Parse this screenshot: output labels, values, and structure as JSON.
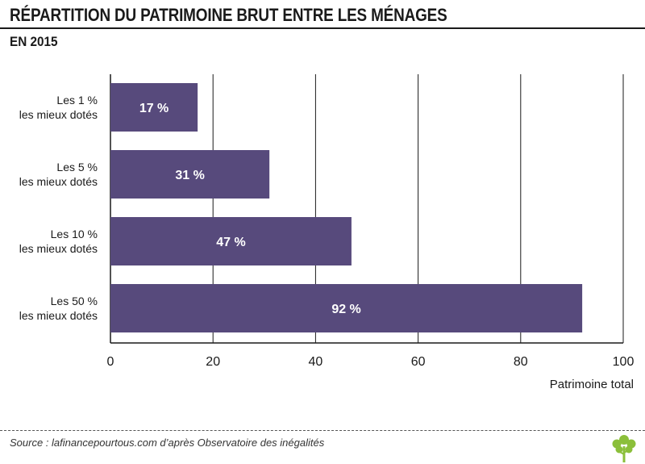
{
  "header": {
    "title": "RÉPARTITION DU PATRIMOINE BRUT ENTRE LES MÉNAGES",
    "subtitle": "EN 2015"
  },
  "footer": {
    "source": "Source : lafinancepourtous.com d’après Observatoire des inégalités"
  },
  "colors": {
    "bar": "#574a7c",
    "bar_label": "#ffffff",
    "logo": "#8bbf3a"
  },
  "chart_data": {
    "type": "bar",
    "orientation": "horizontal",
    "title": "RÉPARTITION DU PATRIMOINE BRUT ENTRE LES MÉNAGES",
    "subtitle": "EN 2015",
    "xlabel": "Patrimoine total",
    "ylabel": "",
    "xlim": [
      0,
      100
    ],
    "xticks": [
      0,
      20,
      40,
      60,
      80,
      100
    ],
    "grid": true,
    "categories": [
      [
        "Les 1 %",
        "les mieux dotés"
      ],
      [
        "Les 5 %",
        "les mieux dotés"
      ],
      [
        "Les 10 %",
        "les mieux dotés"
      ],
      [
        "Les 50 %",
        "les mieux dotés"
      ]
    ],
    "values": [
      17,
      31,
      47,
      92
    ],
    "data_labels": [
      "17 %",
      "31 %",
      "47 %",
      "92 %"
    ]
  }
}
